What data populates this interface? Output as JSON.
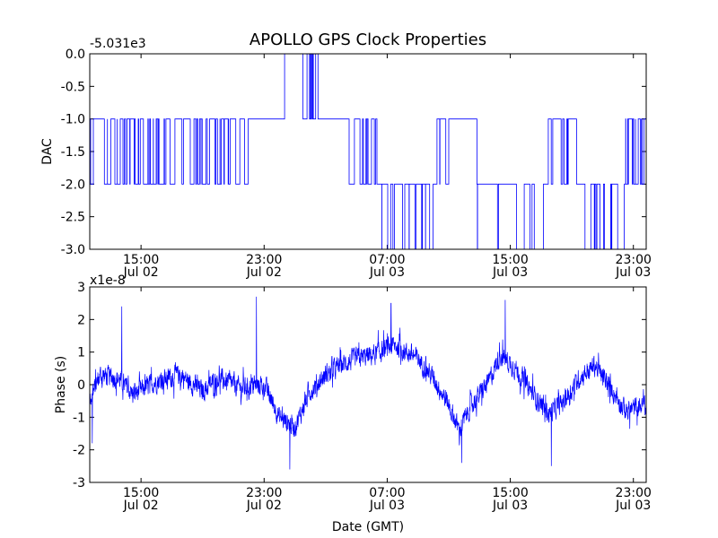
{
  "figure": {
    "title": "APOLLO GPS Clock Properties"
  },
  "chart_data": [
    {
      "type": "line",
      "id": "dac",
      "ylabel": "DAC",
      "xlabel": "",
      "offset_label": "-5.031e3",
      "ylim": [
        -3.0,
        0.0
      ],
      "y_ticks": [
        0.0,
        -0.5,
        -1.0,
        -1.5,
        -2.0,
        -2.5,
        -3.0
      ],
      "y_tick_labels": [
        "0.0",
        "-0.5",
        "-1.0",
        "-1.5",
        "-2.0",
        "-2.5",
        "-3.0"
      ],
      "x_ticks": [
        {
          "time": "Jul 02 15:00",
          "line1": "15:00",
          "line2": "Jul 02"
        },
        {
          "time": "Jul 02 23:00",
          "line1": "23:00",
          "line2": "Jul 02"
        },
        {
          "time": "Jul 03 07:00",
          "line1": "07:00",
          "line2": "Jul 03"
        },
        {
          "time": "Jul 03 15:00",
          "line1": "15:00",
          "line2": "Jul 03"
        },
        {
          "time": "Jul 03 23:00",
          "line1": "23:00",
          "line2": "Jul 03"
        }
      ],
      "xlim": [
        "Jul 02 11:40",
        "Jul 03 23:50"
      ],
      "series": [
        {
          "color": "#0000ff",
          "segments": [
            {
              "start": "Jul 02 11:40",
              "end": "Jul 02 22:00",
              "level": -1.0,
              "alt": -2.0,
              "switches": 70
            },
            {
              "start": "Jul 02 22:00",
              "end": "Jul 03 00:20",
              "level": -1.0,
              "alt": -1.0,
              "switches": 0
            },
            {
              "start": "Jul 03 00:20",
              "end": "Jul 03 01:30",
              "level": 0.0,
              "alt": 0.0,
              "switches": 0
            },
            {
              "start": "Jul 03 01:30",
              "end": "Jul 03 02:30",
              "level": 0.0,
              "alt": -1.0,
              "switches": 10
            },
            {
              "start": "Jul 03 02:30",
              "end": "Jul 03 04:30",
              "level": -1.0,
              "alt": -1.0,
              "switches": 0
            },
            {
              "start": "Jul 03 04:30",
              "end": "Jul 03 06:20",
              "level": -1.0,
              "alt": -2.0,
              "switches": 12
            },
            {
              "start": "Jul 03 06:20",
              "end": "Jul 03 10:00",
              "level": -2.0,
              "alt": -3.0,
              "switches": 18
            },
            {
              "start": "Jul 03 10:00",
              "end": "Jul 03 11:00",
              "level": -2.0,
              "alt": -1.0,
              "switches": 4
            },
            {
              "start": "Jul 03 11:00",
              "end": "Jul 03 12:50",
              "level": -1.0,
              "alt": -1.0,
              "switches": 0
            },
            {
              "start": "Jul 03 12:50",
              "end": "Jul 03 17:10",
              "level": -2.0,
              "alt": -3.0,
              "switches": 10
            },
            {
              "start": "Jul 03 17:10",
              "end": "Jul 03 19:30",
              "level": -2.0,
              "alt": -1.0,
              "switches": 12
            },
            {
              "start": "Jul 03 19:30",
              "end": "Jul 03 22:30",
              "level": -2.0,
              "alt": -3.0,
              "switches": 14
            },
            {
              "start": "Jul 03 22:30",
              "end": "Jul 03 23:50",
              "level": -1.0,
              "alt": -2.0,
              "switches": 16
            }
          ]
        }
      ]
    },
    {
      "type": "line",
      "id": "phase",
      "ylabel": "Phase (s)",
      "xlabel": "Date (GMT)",
      "offset_label": "x1e-8",
      "ylim": [
        -3,
        3
      ],
      "y_ticks": [
        3,
        2,
        1,
        0,
        -1,
        -2,
        -3
      ],
      "y_tick_labels": [
        "3",
        "2",
        "1",
        "0",
        "-1",
        "-2",
        "-3"
      ],
      "x_ticks": [
        {
          "time": "Jul 02 15:00",
          "line1": "15:00",
          "line2": "Jul 02"
        },
        {
          "time": "Jul 02 23:00",
          "line1": "23:00",
          "line2": "Jul 02"
        },
        {
          "time": "Jul 03 07:00",
          "line1": "07:00",
          "line2": "Jul 03"
        },
        {
          "time": "Jul 03 15:00",
          "line1": "15:00",
          "line2": "Jul 03"
        },
        {
          "time": "Jul 03 23:00",
          "line1": "23:00",
          "line2": "Jul 03"
        }
      ],
      "xlim": [
        "Jul 02 11:40",
        "Jul 03 23:50"
      ],
      "series": [
        {
          "color": "#0000ff",
          "trend": [
            {
              "time": "Jul 02 11:40",
              "value": -0.5
            },
            {
              "time": "Jul 02 12:20",
              "value": 0.3
            },
            {
              "time": "Jul 02 13:30",
              "value": 0.2
            },
            {
              "time": "Jul 02 14:30",
              "value": -0.3
            },
            {
              "time": "Jul 02 16:00",
              "value": 0.1
            },
            {
              "time": "Jul 02 17:30",
              "value": 0.3
            },
            {
              "time": "Jul 02 19:00",
              "value": -0.2
            },
            {
              "time": "Jul 02 20:00",
              "value": 0.2
            },
            {
              "time": "Jul 02 21:30",
              "value": -0.1
            },
            {
              "time": "Jul 02 23:00",
              "value": 0.0
            },
            {
              "time": "Jul 03 00:00",
              "value": -1.0
            },
            {
              "time": "Jul 03 01:00",
              "value": -1.3
            },
            {
              "time": "Jul 03 02:00",
              "value": -0.2
            },
            {
              "time": "Jul 03 03:00",
              "value": 0.3
            },
            {
              "time": "Jul 03 04:00",
              "value": 0.6
            },
            {
              "time": "Jul 03 05:00",
              "value": 0.8
            },
            {
              "time": "Jul 03 06:00",
              "value": 0.9
            },
            {
              "time": "Jul 03 07:30",
              "value": 1.2
            },
            {
              "time": "Jul 03 09:00",
              "value": 0.8
            },
            {
              "time": "Jul 03 10:00",
              "value": 0.2
            },
            {
              "time": "Jul 03 11:00",
              "value": -0.6
            },
            {
              "time": "Jul 03 11:40",
              "value": -1.4
            },
            {
              "time": "Jul 03 12:30",
              "value": -0.6
            },
            {
              "time": "Jul 03 13:30",
              "value": 0.0
            },
            {
              "time": "Jul 03 14:20",
              "value": 0.9
            },
            {
              "time": "Jul 03 15:20",
              "value": 0.5
            },
            {
              "time": "Jul 03 16:30",
              "value": -0.3
            },
            {
              "time": "Jul 03 17:30",
              "value": -0.9
            },
            {
              "time": "Jul 03 18:30",
              "value": -0.5
            },
            {
              "time": "Jul 03 19:30",
              "value": 0.2
            },
            {
              "time": "Jul 03 20:30",
              "value": 0.6
            },
            {
              "time": "Jul 03 21:30",
              "value": -0.1
            },
            {
              "time": "Jul 03 22:30",
              "value": -0.8
            },
            {
              "time": "Jul 03 23:50",
              "value": -0.6
            }
          ],
          "noise_amplitude": 0.45,
          "spikes": [
            {
              "time": "Jul 02 13:45",
              "value": 2.4
            },
            {
              "time": "Jul 02 22:30",
              "value": 2.7
            },
            {
              "time": "Jul 03 07:15",
              "value": 2.5
            },
            {
              "time": "Jul 03 14:40",
              "value": 2.6
            },
            {
              "time": "Jul 03 00:40",
              "value": -2.6
            },
            {
              "time": "Jul 03 11:50",
              "value": -2.4
            },
            {
              "time": "Jul 03 17:40",
              "value": -2.5
            },
            {
              "time": "Jul 02 11:50",
              "value": -1.8
            }
          ]
        }
      ]
    }
  ]
}
